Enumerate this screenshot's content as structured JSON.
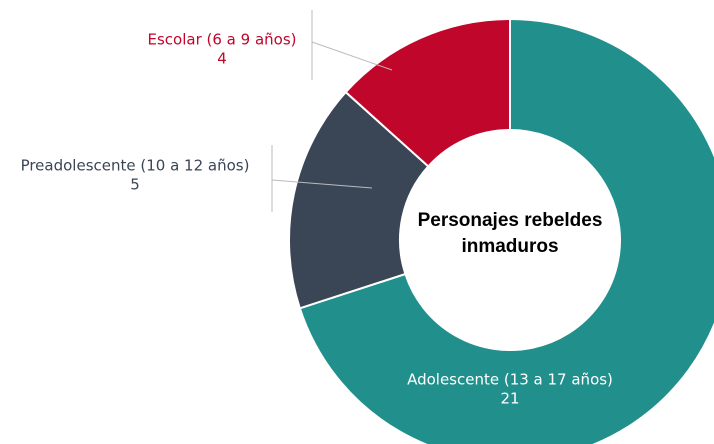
{
  "chart_data": {
    "type": "donut",
    "title": "Personajes rebeldes inmaduros",
    "categories": [
      "Adolescente (13 a 17 años)",
      "Preadolescente (10 a 12 años)",
      "Escolar (6 a 9 años)"
    ],
    "values": [
      21,
      5,
      4
    ],
    "colors": [
      "#21908c",
      "#3a4556",
      "#c0062b"
    ]
  }
}
